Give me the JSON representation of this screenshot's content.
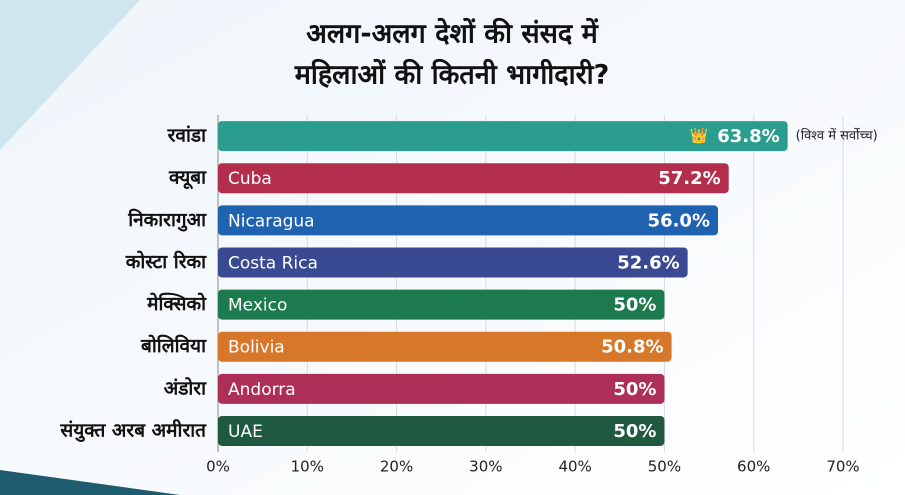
{
  "chart_data": {
    "type": "bar",
    "orientation": "horizontal",
    "title": [
      "अलग-अलग देशों की संसद में",
      "महिलाओं की कितनी भागीदारी?"
    ],
    "categories": [
      "रवांडा",
      "क्यूबा",
      "निकारागुआ",
      "कोस्टा रिका",
      "मेक्सिको",
      "बोलिविया",
      "अंडोरा",
      "संयुक्त अरब अमीरात"
    ],
    "bar_labels": [
      null,
      "Cuba",
      "Nicaragua",
      "Costa Rica",
      "Mexico",
      "Bolivia",
      "Andorra",
      "UAE"
    ],
    "values": [
      63.8,
      57.2,
      56.0,
      52.6,
      50,
      50.8,
      50,
      50
    ],
    "value_labels": [
      "63.8%",
      "57.2%",
      "56.0%",
      "52.6%",
      "50%",
      "50.8%",
      "50%",
      "50%"
    ],
    "colors": [
      "#2a9d8f",
      "#b32e4c",
      "#1f62b0",
      "#3a4a92",
      "#1d7a4e",
      "#d6772a",
      "#ad2f58",
      "#1f5a40"
    ],
    "annotation": "(विश्व में सर्वोच्च)",
    "xlim": [
      0,
      70
    ],
    "xticks": [
      {
        "value": 0,
        "label": "0%"
      },
      {
        "value": 10,
        "label": "10%"
      },
      {
        "value": 20,
        "label": "20%"
      },
      {
        "value": 30,
        "label": "30%"
      },
      {
        "value": 40,
        "label": "40%"
      },
      {
        "value": 50,
        "label": "50%"
      },
      {
        "value": 60,
        "label": "60%"
      },
      {
        "value": 70,
        "label": "70%"
      }
    ],
    "grid": true
  }
}
